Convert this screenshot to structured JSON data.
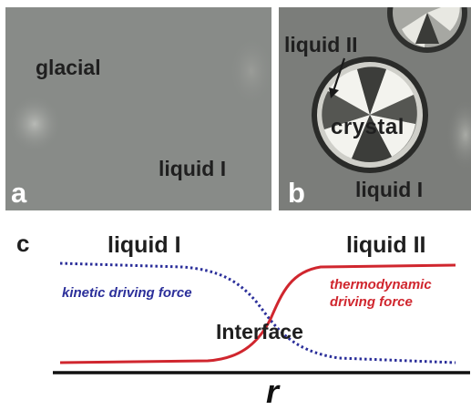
{
  "panels": {
    "a": {
      "letter": "a",
      "phase_top": "glacial",
      "phase_bottom": "liquid I"
    },
    "b": {
      "letter": "b",
      "label_top": "liquid II",
      "label_center": "crystal",
      "label_bottom": "liquid I"
    },
    "c": {
      "letter": "c",
      "left_phase": "liquid I",
      "right_phase": "liquid II",
      "kinetic_label": "kinetic driving force",
      "thermo_label_line1": "thermodynamic",
      "thermo_label_line2": "driving force",
      "interface_label": "Interface",
      "axis_label": "r"
    }
  },
  "colors": {
    "kinetic": "#2b2f9a",
    "thermodynamic": "#d0262e",
    "text": "#1f1f1f"
  }
}
